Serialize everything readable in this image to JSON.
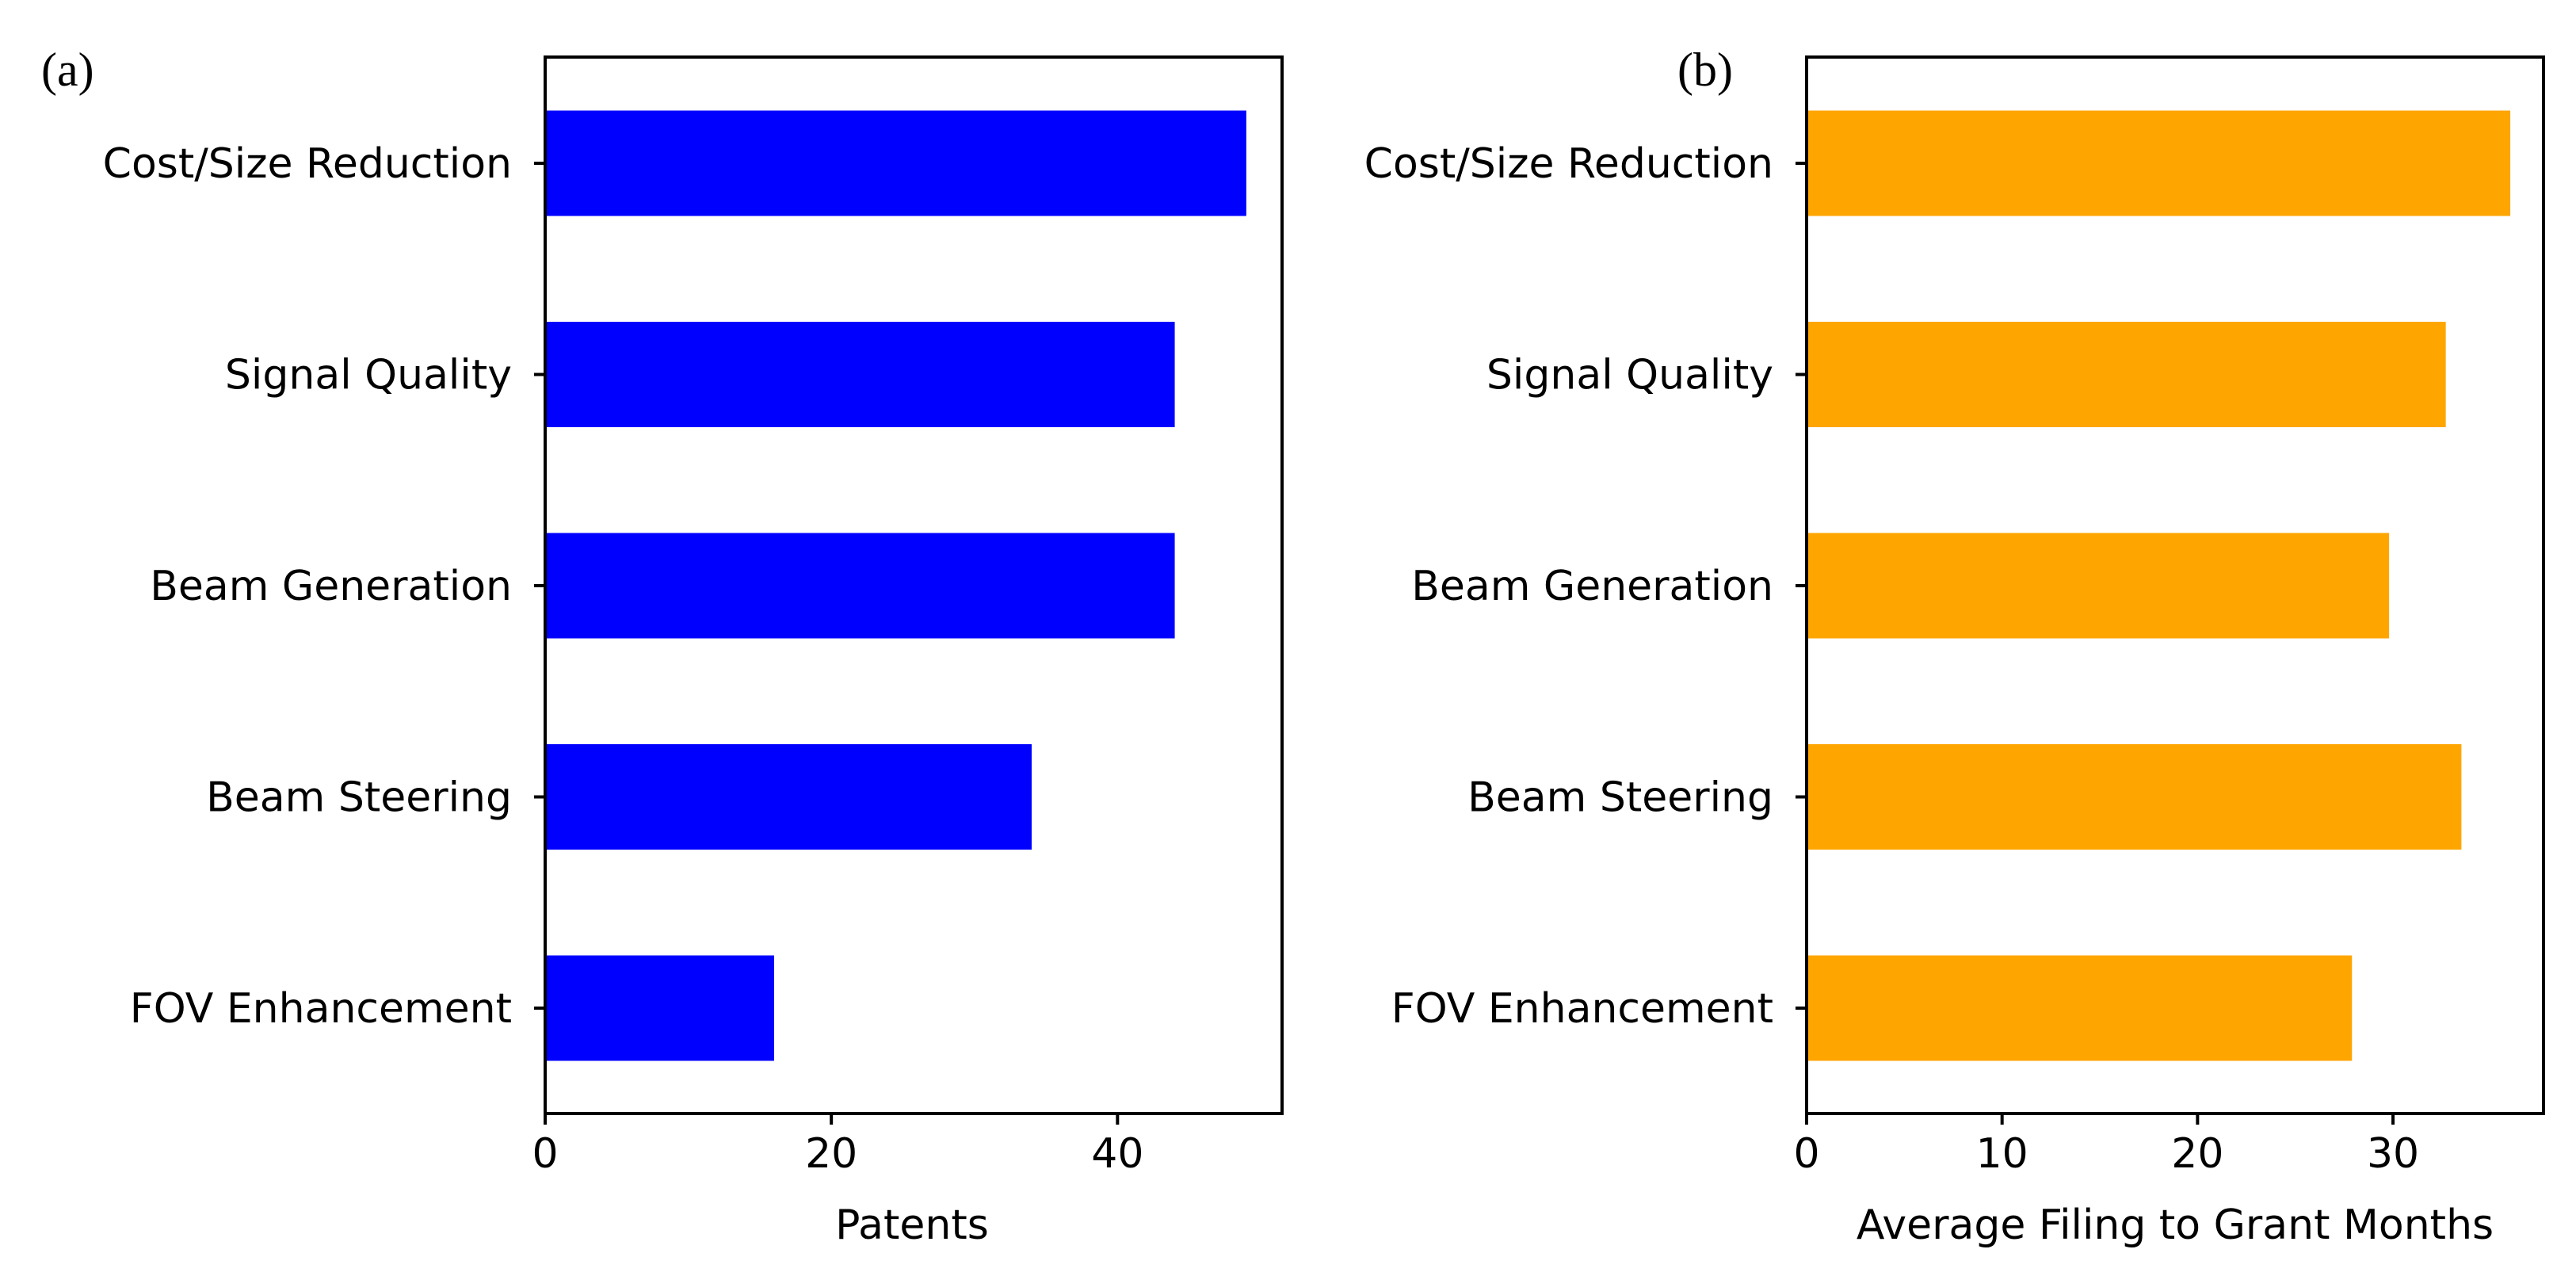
{
  "chart_data": [
    {
      "type": "bar",
      "orientation": "horizontal",
      "panel_label": "(a)",
      "categories": [
        "Cost/Size Reduction",
        "Signal Quality",
        "Beam Generation",
        "Beam Steering",
        "FOV Enhancement"
      ],
      "values": [
        49,
        44,
        44,
        34,
        16
      ],
      "xlabel": "Patents",
      "ylabel": "",
      "xlim": [
        0,
        51.5
      ],
      "xticks": [
        0,
        20,
        40
      ],
      "color": "#0000ff",
      "grid": false
    },
    {
      "type": "bar",
      "orientation": "horizontal",
      "panel_label": "(b)",
      "categories": [
        "Cost/Size Reduction",
        "Signal Quality",
        "Beam Generation",
        "Beam Steering",
        "FOV Enhancement"
      ],
      "values": [
        36,
        32.7,
        29.8,
        33.5,
        27.9
      ],
      "xlabel": "Average Filing to Grant Months",
      "ylabel": "",
      "xlim": [
        0,
        37.7
      ],
      "xticks": [
        0,
        10,
        20,
        30
      ],
      "color": "#ffa500",
      "grid": false
    }
  ]
}
